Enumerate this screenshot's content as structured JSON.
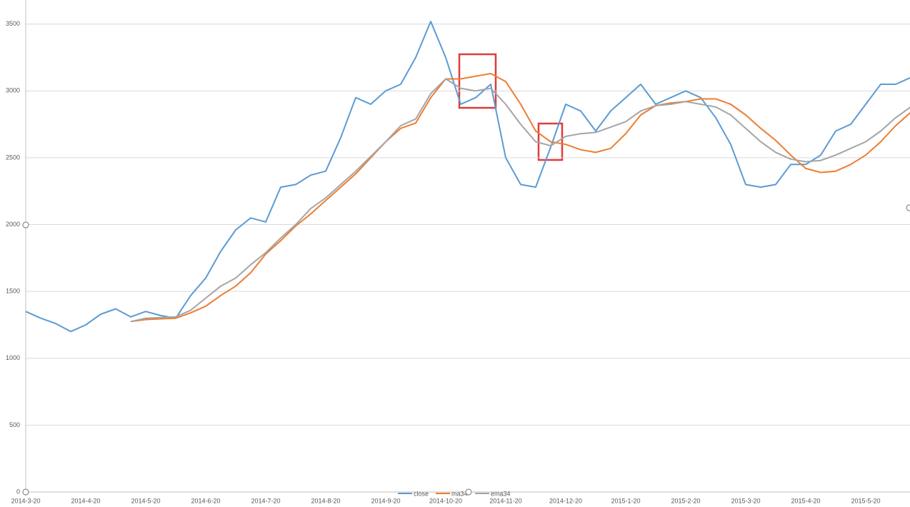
{
  "chart_data": {
    "type": "line",
    "categories": [
      "2014-3-20",
      null,
      null,
      null,
      "2014-4-20",
      null,
      null,
      null,
      "2014-5-20",
      null,
      null,
      null,
      "2014-6-20",
      null,
      null,
      null,
      "2014-7-20",
      null,
      null,
      null,
      "2014-8-20",
      null,
      null,
      null,
      "2014-9-20",
      null,
      null,
      null,
      "2014-10-20",
      null,
      null,
      null,
      "2014-11-20",
      null,
      null,
      null,
      "2014-12-20",
      null,
      null,
      null,
      "2015-1-20",
      null,
      null,
      null,
      "2015-2-20",
      null,
      null,
      null,
      "2015-3-20",
      null,
      null,
      null,
      "2015-4-20",
      null,
      null,
      null,
      "2015-5-20",
      null,
      null,
      null
    ],
    "series": [
      {
        "name": "close",
        "color": "#5b9bd5",
        "values": [
          1350,
          1300,
          1260,
          1200,
          1250,
          1330,
          1370,
          1310,
          1350,
          1320,
          1300,
          1470,
          1600,
          1800,
          1960,
          2050,
          2020,
          2280,
          2300,
          2370,
          2400,
          2650,
          2950,
          2900,
          3000,
          3050,
          3250,
          3520,
          3250,
          2900,
          2950,
          3050,
          2500,
          2300,
          2280,
          2580,
          2900,
          2850,
          2700,
          2850,
          2950,
          3050,
          2900,
          2950,
          3000,
          2950,
          2800,
          2600,
          2300,
          2280,
          2300,
          2450,
          2450,
          2520,
          2700,
          2750,
          2900,
          3050,
          3050,
          3100
        ]
      },
      {
        "name": "ma34",
        "color": "#ed7d31",
        "values": [
          null,
          null,
          null,
          null,
          null,
          null,
          null,
          1275,
          1290,
          1295,
          1300,
          1340,
          1390,
          1470,
          1540,
          1640,
          1780,
          1880,
          1990,
          2080,
          2180,
          2280,
          2380,
          2500,
          2620,
          2720,
          2760,
          2950,
          3090,
          3090,
          3110,
          3130,
          3070,
          2900,
          2700,
          2620,
          2600,
          2560,
          2540,
          2570,
          2680,
          2820,
          2890,
          2910,
          2920,
          2940,
          2940,
          2900,
          2820,
          2720,
          2630,
          2520,
          2420,
          2390,
          2400,
          2450,
          2520,
          2620,
          2740,
          2840
        ]
      },
      {
        "name": "ema34",
        "color": "#a5a5a5",
        "values": [
          null,
          null,
          null,
          null,
          null,
          null,
          null,
          1275,
          1300,
          1305,
          1310,
          1360,
          1450,
          1540,
          1600,
          1700,
          1790,
          1900,
          2000,
          2120,
          2200,
          2300,
          2400,
          2510,
          2620,
          2740,
          2790,
          2980,
          3090,
          3020,
          3000,
          3020,
          2900,
          2750,
          2620,
          2590,
          2660,
          2680,
          2690,
          2730,
          2770,
          2850,
          2890,
          2900,
          2920,
          2900,
          2880,
          2820,
          2720,
          2620,
          2540,
          2490,
          2470,
          2480,
          2520,
          2570,
          2620,
          2700,
          2800,
          2880
        ]
      }
    ],
    "ylim": [
      0,
      3680
    ],
    "yticks": [
      0,
      500,
      1000,
      1500,
      2000,
      2500,
      3000,
      3500
    ],
    "grid": true,
    "legend": "bottom"
  }
}
